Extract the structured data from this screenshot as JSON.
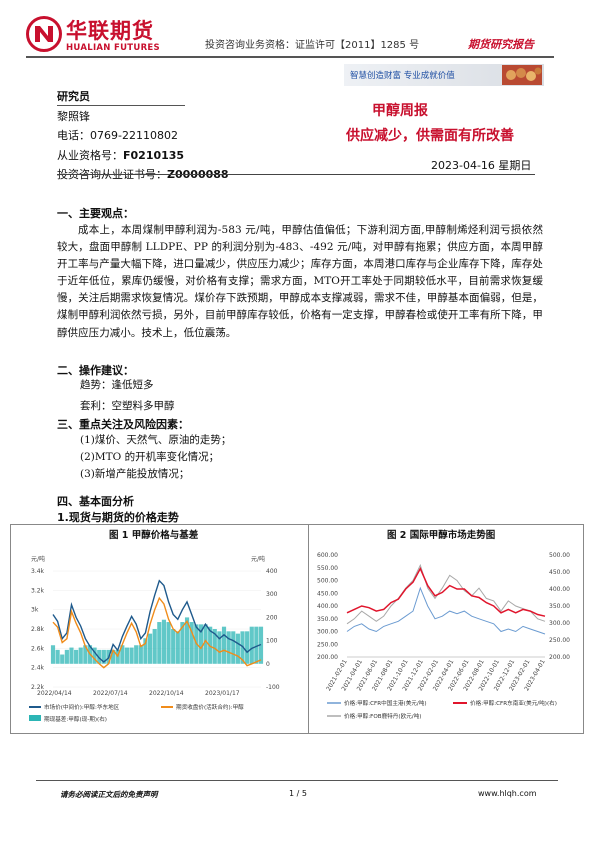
{
  "header": {
    "brand_cn": "华联期货",
    "brand_en": "HUALIAN FUTURES",
    "license": "投资咨询业务资格：证监许可【2011】1285 号",
    "report_type": "期货研究报告",
    "slogan": "智慧创造财富  专业成就价值"
  },
  "analyst": {
    "role": "研究员",
    "name": "黎照锋",
    "phone_label": "电话：",
    "phone": "0769-22110802",
    "qual_label": "从业资格号：",
    "qual": "F0210135",
    "cert_label": "投资咨询从业证书号：",
    "cert": "Z0000088"
  },
  "report": {
    "title": "甲醇周报",
    "subtitle": "供应减少，供需面有所改善",
    "date": "2023-04-16 星期日"
  },
  "sections": {
    "s1": "一、主要观点：",
    "s1_para": "成本上，本周煤制甲醇利润为-583 元/吨，甲醇估值偏低；下游利润方面,甲醇制烯烃利润亏损依然较大，盘面甲醇制 LLDPE、PP 的利润分别为-483、-492 元/吨，对甲醇有拖累；供应方面，本周甲醇开工率与产量大幅下降，进口量减少，供应压力减少；库存方面，本周港口库存与企业库存下降，库存处于近年低位，累库仍缓慢，对价格有支撑；需求方面，MTO开工率处于同期较低水平，目前需求恢复缓慢，关注后期需求恢复情况。煤价存下跌预期，甲醇成本支撑减弱，需求不佳，甲醇基本面偏弱，但是，煤制甲醇利润依然亏损，另外，目前甲醇库存较低，价格有一定支撑，甲醇春检或使开工率有所下降，甲醇供应压力减小。技术上，低位震荡。",
    "s2": "二、操作建议：",
    "trend": "趋势：逢低短多",
    "hedge": "套利：空塑料多甲醇",
    "s3": "三、重点关注及风险因素：",
    "risk1": "(1)煤价、天然气、原油的走势；",
    "risk2": "(2)MTO 的开机率变化情况；",
    "risk3": "(3)新增产能投放情况；",
    "s4": "四、基本面分析",
    "s4_1": "1.现货与期货的价格走势"
  },
  "figures": {
    "fig1_title": "图 1  甲醇价格与基差",
    "fig2_title": "图 2  国际甲醇市场走势图"
  },
  "chart_data": [
    {
      "type": "line",
      "title": "图 1  甲醇价格与基差",
      "ylabel_left": "元/吨",
      "ylabel_right": "元/吨",
      "yticks_left": [
        "3.4k",
        "3.2k",
        "3k",
        "2.8k",
        "2.6k",
        "2.4k",
        "2.2k"
      ],
      "yticks_right": [
        "400",
        "300",
        "200",
        "100",
        "0",
        "-100"
      ],
      "ylim_left": [
        2200,
        3400
      ],
      "ylim_right": [
        -100,
        400
      ],
      "xticks": [
        "2022/04/14",
        "2022/07/14",
        "2022/10/14",
        "2023/01/17"
      ],
      "legend": [
        "市场价(中间价):甲醇:华东地区",
        "期货收盘价(活跃合约):甲醇",
        "期现基差:甲醇(现-期)(右)"
      ],
      "series": [
        {
          "name": "市场价(中间价):甲醇:华东地区",
          "color": "#1f5a8c",
          "values": [
            2950,
            2880,
            2700,
            2760,
            3050,
            2920,
            2830,
            2700,
            2620,
            2560,
            2500,
            2460,
            2500,
            2640,
            2580,
            2720,
            2830,
            2930,
            2850,
            2700,
            2760,
            2980,
            3150,
            3300,
            3250,
            3080,
            2950,
            2900,
            3000,
            3080,
            2950,
            2820,
            2770,
            2850,
            2780,
            2750,
            2700,
            2740,
            2700,
            2680,
            2650,
            2620,
            2560,
            2600,
            2620,
            2640
          ]
        },
        {
          "name": "期货收盘价(活跃合约):甲醇",
          "color": "#f08c1a",
          "values": [
            2870,
            2820,
            2660,
            2700,
            2980,
            2860,
            2760,
            2620,
            2540,
            2490,
            2440,
            2400,
            2440,
            2580,
            2520,
            2640,
            2760,
            2860,
            2770,
            2620,
            2650,
            2850,
            3000,
            3120,
            3060,
            2900,
            2800,
            2760,
            2820,
            2880,
            2770,
            2650,
            2600,
            2680,
            2620,
            2600,
            2560,
            2580,
            2560,
            2540,
            2520,
            2480,
            2420,
            2440,
            2460,
            2480
          ]
        },
        {
          "name": "期现基差:甲醇(现-期)(右)",
          "color": "#2cb5b5",
          "values": [
            80,
            60,
            40,
            60,
            70,
            60,
            70,
            80,
            80,
            70,
            60,
            60,
            60,
            60,
            60,
            80,
            70,
            70,
            80,
            80,
            110,
            130,
            150,
            180,
            190,
            180,
            150,
            140,
            180,
            200,
            180,
            170,
            170,
            170,
            160,
            150,
            140,
            160,
            140,
            140,
            130,
            140,
            140,
            160,
            160,
            160
          ]
        }
      ]
    },
    {
      "type": "line",
      "title": "图 2  国际甲醇市场走势图",
      "yticks_left": [
        "600.00",
        "550.00",
        "500.00",
        "450.00",
        "400.00",
        "350.00",
        "300.00",
        "250.00",
        "200.00"
      ],
      "yticks_right": [
        "500.00",
        "450.00",
        "400.00",
        "350.00",
        "300.00",
        "250.00",
        "200.00"
      ],
      "ylim_left": [
        200,
        600
      ],
      "ylim_right": [
        200,
        500
      ],
      "xticks": [
        "2021-02-01",
        "2021-04-01",
        "2021-06-01",
        "2021-08-01",
        "2021-10-01",
        "2021-12-01",
        "2022-02-01",
        "2022-04-01",
        "2022-06-01",
        "2022-08-01",
        "2022-10-01",
        "2022-12-01",
        "2023-02-01",
        "2023-04-01"
      ],
      "legend": [
        "价格:甲醇:CFR中国主港(美元/吨)",
        "价格:甲醇:FOB鹿特丹(欧元/吨)",
        "价格:甲醇:CFR东南亚(美元/吨)(右)"
      ],
      "series": [
        {
          "name": "价格:甲醇:CFR中国主港(美元/吨)",
          "color": "#6b9bd1",
          "values": [
            300,
            320,
            330,
            310,
            300,
            320,
            330,
            340,
            360,
            380,
            470,
            400,
            350,
            360,
            380,
            370,
            380,
            360,
            350,
            340,
            330,
            300,
            310,
            300,
            320,
            310,
            300,
            290
          ]
        },
        {
          "name": "价格:甲醇:FOB鹿特丹(欧元/吨)",
          "color": "#a8a8a8",
          "values": [
            330,
            350,
            380,
            360,
            340,
            360,
            400,
            430,
            470,
            500,
            560,
            470,
            430,
            470,
            520,
            500,
            460,
            440,
            470,
            430,
            420,
            380,
            420,
            400,
            390,
            380,
            350,
            340
          ]
        },
        {
          "name": "价格:甲醇:CFR东南亚(美元/吨)(右)",
          "color": "#e0152c",
          "values": [
            330,
            340,
            350,
            345,
            335,
            340,
            360,
            370,
            400,
            420,
            460,
            410,
            380,
            390,
            410,
            400,
            400,
            380,
            375,
            360,
            350,
            330,
            340,
            330,
            340,
            335,
            325,
            320
          ]
        }
      ]
    }
  ],
  "footer": {
    "disclaimer": "请务必阅读正文后的免责声明",
    "page": "1 / 5",
    "website": "www.hlqh.com"
  }
}
